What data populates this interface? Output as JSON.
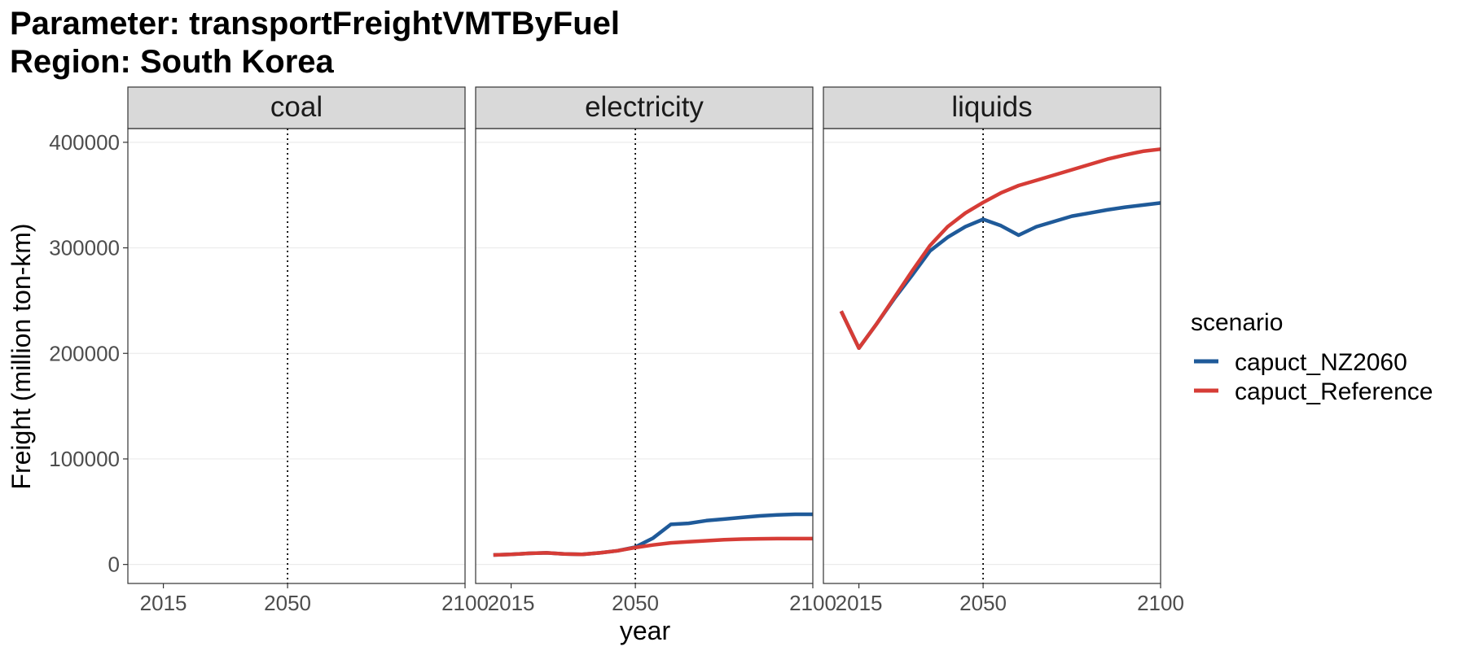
{
  "title_lines": [
    "Parameter: transportFreightVMTByFuel",
    "Region: South Korea"
  ],
  "colors": {
    "capuct_NZ2060": "#1f5a99",
    "capuct_Reference": "#d63c36",
    "strip_bg": "#d9d9d9",
    "grid": "#ebebeb"
  },
  "chart_data": {
    "type": "line",
    "xlabel": "year",
    "ylabel": "Freight (million ton-km)",
    "xlim": [
      2005,
      2100
    ],
    "ylim": [
      -18000,
      413000
    ],
    "x_ticks": [
      2015,
      2050,
      2100
    ],
    "y_ticks": [
      0,
      100000,
      200000,
      300000,
      400000
    ],
    "reference_line_x": 2050,
    "legend": {
      "title": "scenario",
      "position": "right",
      "entries": [
        "capuct_NZ2060",
        "capuct_Reference"
      ]
    },
    "panels": [
      {
        "name": "coal",
        "series": []
      },
      {
        "name": "electricity",
        "series": [
          {
            "name": "capuct_NZ2060",
            "x": [
              2010,
              2015,
              2020,
              2025,
              2030,
              2035,
              2040,
              2045,
              2050,
              2055,
              2060,
              2065,
              2070,
              2075,
              2080,
              2085,
              2090,
              2095,
              2100
            ],
            "y": [
              9000,
              9500,
              10500,
              11000,
              10000,
              9500,
              11000,
              13000,
              16500,
              25000,
              38000,
              39000,
              41500,
              43000,
              44500,
              46000,
              47000,
              47500,
              47500
            ]
          },
          {
            "name": "capuct_Reference",
            "x": [
              2010,
              2015,
              2020,
              2025,
              2030,
              2035,
              2040,
              2045,
              2050,
              2055,
              2060,
              2065,
              2070,
              2075,
              2080,
              2085,
              2090,
              2095,
              2100
            ],
            "y": [
              9000,
              9500,
              10500,
              11000,
              10000,
              9500,
              11000,
              13000,
              16000,
              18500,
              20500,
              21500,
              22500,
              23500,
              24000,
              24300,
              24500,
              24500,
              24500
            ]
          }
        ]
      },
      {
        "name": "liquids",
        "series": [
          {
            "name": "capuct_NZ2060",
            "x": [
              2010,
              2015,
              2020,
              2025,
              2030,
              2035,
              2040,
              2045,
              2050,
              2055,
              2060,
              2065,
              2070,
              2075,
              2080,
              2085,
              2090,
              2095,
              2100
            ],
            "y": [
              240000,
              205000,
              228000,
              252000,
              274000,
              297000,
              310000,
              320000,
              327000,
              321000,
              312000,
              320000,
              325000,
              330000,
              333000,
              336000,
              338500,
              340500,
              342500
            ]
          },
          {
            "name": "capuct_Reference",
            "x": [
              2010,
              2015,
              2020,
              2025,
              2030,
              2035,
              2040,
              2045,
              2050,
              2055,
              2060,
              2065,
              2070,
              2075,
              2080,
              2085,
              2090,
              2095,
              2100
            ],
            "y": [
              240000,
              205000,
              228000,
              253000,
              278000,
              302000,
              320000,
              333000,
              343000,
              352000,
              359000,
              364000,
              369000,
              374000,
              379000,
              384000,
              388000,
              391500,
              393500
            ]
          }
        ]
      }
    ]
  }
}
